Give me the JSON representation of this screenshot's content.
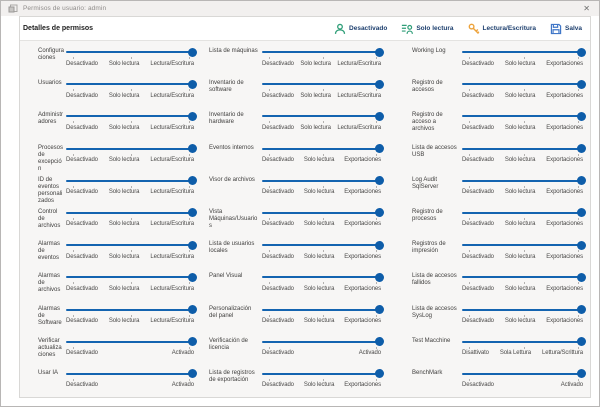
{
  "window": {
    "title": "Permisos de usuario: admin",
    "close_glyph": "✕"
  },
  "header": {
    "title": "Detalles de permisos",
    "buttons": [
      {
        "label": "Desactivado",
        "icon": "person-icon",
        "color": "#2f9e78"
      },
      {
        "label": "Solo lectura",
        "icon": "list-person-icon",
        "color": "#2f9e78"
      },
      {
        "label": "Lectura/Escritura",
        "icon": "key-icon",
        "color": "#eda33c"
      },
      {
        "label": "Salva",
        "icon": "save-icon",
        "color": "#4077c8"
      }
    ]
  },
  "slider": {
    "track_color": "#1464b0",
    "thumb_color": "#0e5da9",
    "value_position": "max"
  },
  "columns": [
    {
      "items": [
        {
          "label": "Configuraciones",
          "ticks": [
            "Desactivado",
            "Solo lectura",
            "Lectura/Escritura"
          ]
        },
        {
          "label": "Usuarios",
          "ticks": [
            "Desactivado",
            "Solo lectura",
            "Lectura/Escritura"
          ]
        },
        {
          "label": "Administradores",
          "ticks": [
            "Desactivado",
            "Solo lectura",
            "Lectura/Escritura"
          ]
        },
        {
          "label": "Procesos de excepción",
          "ticks": [
            "Desactivado",
            "Solo lectura",
            "Lectura/Escritura"
          ]
        },
        {
          "label": "ID de eventos personalizados",
          "ticks": [
            "Desactivado",
            "Solo lectura",
            "Lectura/Escritura"
          ]
        },
        {
          "label": "Control de archivos",
          "ticks": [
            "Desactivado",
            "Solo lectura",
            "Lectura/Escritura"
          ]
        },
        {
          "label": "Alarmas de eventos",
          "ticks": [
            "Desactivado",
            "Solo lectura",
            "Lectura/Escritura"
          ]
        },
        {
          "label": "Alarmas de archivos",
          "ticks": [
            "Desactivado",
            "Solo lectura",
            "Lectura/Escritura"
          ]
        },
        {
          "label": "Alarmas de Software",
          "ticks": [
            "Desactivado",
            "Solo lectura",
            "Lectura/Escritura"
          ]
        },
        {
          "label": "Verificar actualizaciones",
          "ticks": [
            "Desactivado",
            "Activado"
          ]
        },
        {
          "label": "Usar IA",
          "ticks": [
            "Desactivado",
            "Activado"
          ]
        }
      ]
    },
    {
      "items": [
        {
          "label": "Lista de máquinas",
          "ticks": [
            "Desactivado",
            "Solo lectura",
            "Lectura/Escritura"
          ]
        },
        {
          "label": "Inventario de software",
          "ticks": [
            "Desactivado",
            "Solo lectura",
            "Lectura/Escritura"
          ]
        },
        {
          "label": "Inventario de hardware",
          "ticks": [
            "Desactivado",
            "Solo lectura",
            "Lectura/Escritura"
          ]
        },
        {
          "label": "Eventos internos",
          "ticks": [
            "Desactivado",
            "Solo lectura",
            "Exportaciones"
          ]
        },
        {
          "label": "Visor de archivos",
          "ticks": [
            "Desactivado",
            "Solo lectura",
            "Exportaciones"
          ]
        },
        {
          "label": "Vista Máquinas/Usuarios",
          "ticks": [
            "Desactivado",
            "Solo lectura",
            "Exportaciones"
          ]
        },
        {
          "label": "Lista de usuarios locales",
          "ticks": [
            "Desactivado",
            "Solo lectura",
            "Exportaciones"
          ]
        },
        {
          "label": "Panel Visual",
          "ticks": [
            "Desactivado",
            "Solo lectura",
            "Exportaciones"
          ]
        },
        {
          "label": "Personalización del panel",
          "ticks": [
            "Desactivado",
            "Solo lectura",
            "Exportaciones"
          ]
        },
        {
          "label": "Verificación de licencia",
          "ticks": [
            "Desactivado",
            "Activado"
          ]
        },
        {
          "label": "Lista de registros de exportación",
          "ticks": [
            "Desactivado",
            "Solo lectura",
            "Exportaciones"
          ]
        }
      ]
    },
    {
      "items": [
        {
          "label": "Working Log",
          "ticks": [
            "Desactivado",
            "Solo lectura",
            "Exportaciones"
          ]
        },
        {
          "label": "Registro de accesos",
          "ticks": [
            "Desactivado",
            "Solo lectura",
            "Exportaciones"
          ]
        },
        {
          "label": "Registro de acceso a archivos",
          "ticks": [
            "Desactivado",
            "Solo lectura",
            "Exportaciones"
          ]
        },
        {
          "label": "Lista de accesos USB",
          "ticks": [
            "Desactivado",
            "Solo lectura",
            "Exportaciones"
          ]
        },
        {
          "label": "Log Audit SqlServer",
          "ticks": [
            "Desactivado",
            "Solo lectura",
            "Exportaciones"
          ]
        },
        {
          "label": "Registro de procesos",
          "ticks": [
            "Desactivado",
            "Solo lectura",
            "Exportaciones"
          ]
        },
        {
          "label": "Registros de impresión",
          "ticks": [
            "Desactivado",
            "Solo lectura",
            "Exportaciones"
          ]
        },
        {
          "label": "Lista de accesos fallidos",
          "ticks": [
            "Desactivado",
            "Solo lectura",
            "Exportaciones"
          ]
        },
        {
          "label": "Lista de accesos SysLog",
          "ticks": [
            "Desactivado",
            "Solo lectura",
            "Exportaciones"
          ]
        },
        {
          "label": "Test Macchine",
          "ticks": [
            "Disattivato",
            "Sola Lettura",
            "Lettura/Scrittura"
          ]
        },
        {
          "label": "BenchMark",
          "ticks": [
            "Desactivado",
            "Activado"
          ]
        }
      ]
    }
  ]
}
